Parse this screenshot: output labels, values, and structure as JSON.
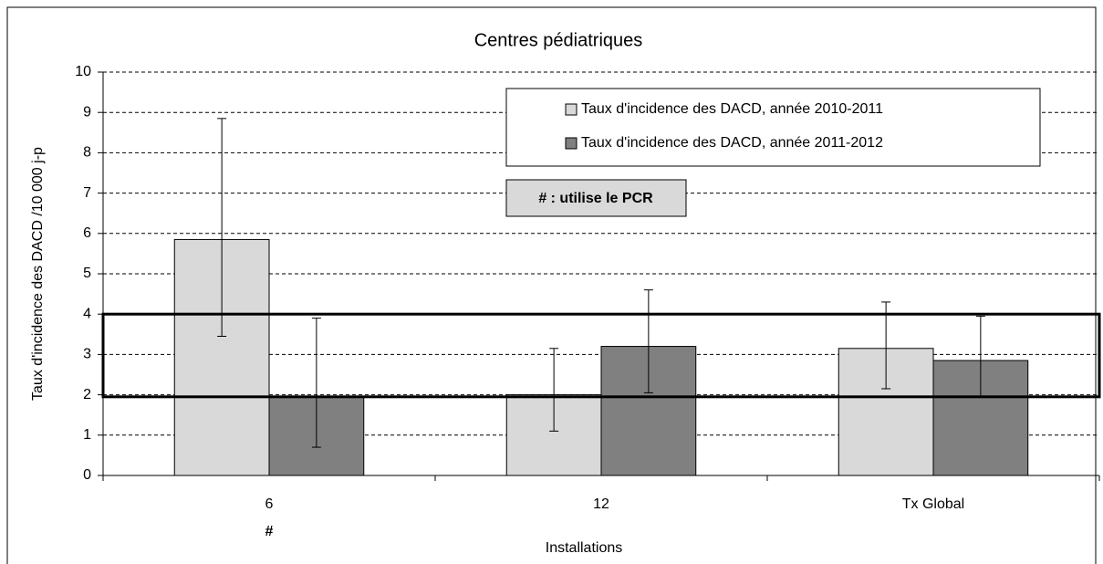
{
  "chart_data": {
    "type": "bar",
    "title": "Centres pédiatriques",
    "x_label": "Installations",
    "y_label": "Taux d'incidence  des DACD /10 000 j-p",
    "annotation": "# : utilise le PCR",
    "categories": [
      "6",
      "12",
      "Tx Global"
    ],
    "category_marks": [
      "#",
      null,
      null
    ],
    "series": [
      {
        "name": "Taux d'incidence  des DACD,  année  2010-2011",
        "color": "#d9d9d9",
        "values": [
          5.85,
          2.0,
          3.15
        ],
        "lower": [
          3.45,
          1.1,
          2.15
        ],
        "upper": [
          8.85,
          3.15,
          4.3
        ]
      },
      {
        "name": "Taux d'incidence  des DACD,  année  2011-2012",
        "color": "#808080",
        "values": [
          1.95,
          3.2,
          2.85
        ],
        "lower": [
          0.7,
          2.05,
          1.95
        ],
        "upper": [
          3.9,
          4.6,
          3.95
        ]
      }
    ],
    "reference_band": [
      1.95,
      4
    ],
    "ylim": [
      0,
      10
    ],
    "yticks": [
      0,
      1,
      2,
      3,
      4,
      5,
      6,
      7,
      8,
      9,
      10
    ],
    "grid": true
  }
}
